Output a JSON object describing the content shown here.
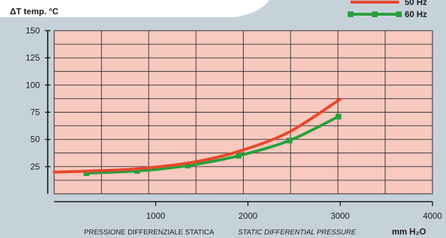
{
  "chart_data": {
    "type": "line",
    "ylabel": "ΔT  temp. °C",
    "xlabel_it": "PRESSIONE DIFFERENZIALE STATICA",
    "xlabel_en": "STATIC DIFFERENTIAL PRESSURE",
    "x_unit": "mm H₂O",
    "xlim": [
      -100,
      4000
    ],
    "ylim": [
      0,
      150
    ],
    "x_ticks": [
      1000,
      2000,
      3000,
      4000
    ],
    "y_ticks": [
      25,
      50,
      75,
      100,
      125,
      150
    ],
    "grid": true,
    "legend_position": "top-right",
    "series": [
      {
        "name": "50 Hz",
        "color": "#e8472b",
        "marker": "none",
        "x": [
          -100,
          300,
          800,
          1400,
          1900,
          2450,
          3000
        ],
        "y": [
          20,
          21,
          23,
          29,
          39,
          57,
          87
        ]
      },
      {
        "name": "60 Hz",
        "color": "#28a03c",
        "marker": "square",
        "x": [
          250,
          800,
          1350,
          1900,
          2450,
          2980
        ],
        "y": [
          19,
          21,
          26,
          35,
          49,
          71
        ]
      }
    ]
  }
}
